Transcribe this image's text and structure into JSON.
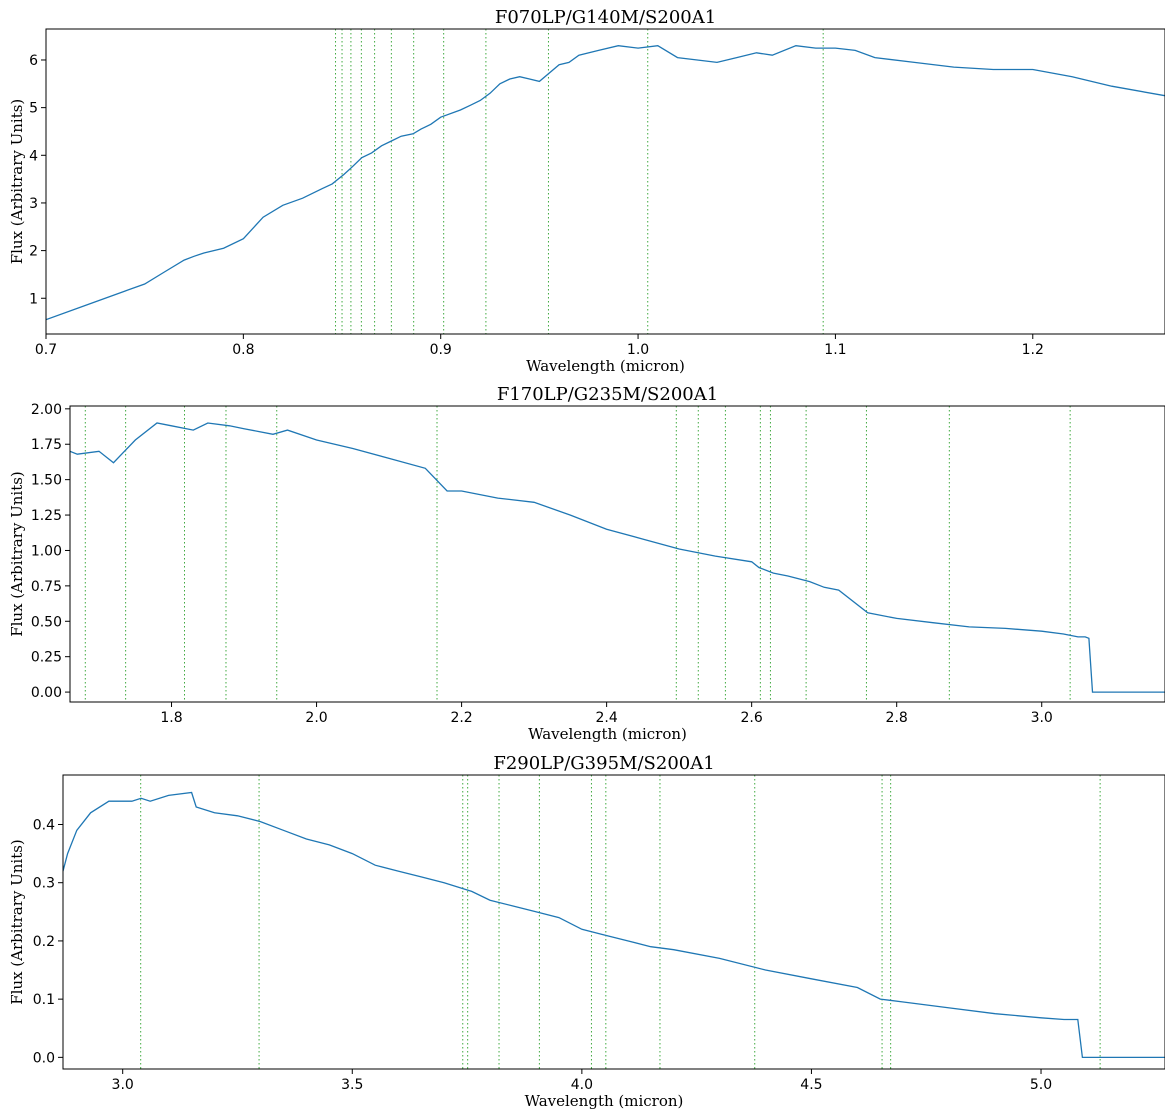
{
  "chart_data": [
    {
      "type": "line",
      "title": "F070LP/G140M/S200A1",
      "xlabel": "Wavelength (micron)",
      "ylabel": "Flux (Arbitrary Units)",
      "xlim": [
        0.7,
        1.267
      ],
      "ylim": [
        0.25,
        6.65
      ],
      "xticks": [
        "0.7",
        "0.8",
        "0.9",
        "1.0",
        "1.1",
        "1.2"
      ],
      "yticks": [
        "1",
        "2",
        "3",
        "4",
        "5",
        "6"
      ],
      "grid": false,
      "line_color": "#1f77b4",
      "marker_color": "#2ca02c",
      "marker_lines": [
        0.8467,
        0.85,
        0.8545,
        0.8598,
        0.8665,
        0.875,
        0.8863,
        0.9015,
        0.9229,
        0.9546,
        1.0049,
        1.0938
      ],
      "series": [
        {
          "x": [
            0.7,
            0.72,
            0.74,
            0.75,
            0.76,
            0.77,
            0.775,
            0.78,
            0.79,
            0.8,
            0.81,
            0.82,
            0.83,
            0.84,
            0.845,
            0.848,
            0.851,
            0.855,
            0.86,
            0.865,
            0.87,
            0.875,
            0.88,
            0.886,
            0.89,
            0.895,
            0.9,
            0.91,
            0.915,
            0.92,
            0.925,
            0.93,
            0.935,
            0.94,
            0.945,
            0.95,
            0.96,
            0.965,
            0.97,
            0.98,
            0.99,
            1.0,
            1.01,
            1.02,
            1.03,
            1.04,
            1.05,
            1.06,
            1.068,
            1.08,
            1.09,
            1.1,
            1.11,
            1.12,
            1.14,
            1.16,
            1.18,
            1.2,
            1.22,
            1.24,
            1.267
          ],
          "y": [
            0.55,
            0.85,
            1.15,
            1.3,
            1.55,
            1.8,
            1.88,
            1.95,
            2.05,
            2.25,
            2.7,
            2.95,
            3.1,
            3.3,
            3.4,
            3.5,
            3.6,
            3.75,
            3.95,
            4.05,
            4.2,
            4.3,
            4.4,
            4.45,
            4.55,
            4.65,
            4.8,
            4.95,
            5.05,
            5.15,
            5.3,
            5.5,
            5.6,
            5.65,
            5.6,
            5.55,
            5.9,
            5.95,
            6.1,
            6.2,
            6.3,
            6.25,
            6.3,
            6.05,
            6.0,
            5.95,
            6.05,
            6.15,
            6.1,
            6.3,
            6.25,
            6.25,
            6.2,
            6.05,
            5.95,
            5.85,
            5.8,
            5.8,
            5.65,
            5.45,
            5.25
          ]
        }
      ]
    },
    {
      "type": "line",
      "title": "F170LP/G235M/S200A1",
      "xlabel": "Wavelength (micron)",
      "ylabel": "Flux (Arbitrary Units)",
      "xlim": [
        1.66,
        3.17
      ],
      "ylim": [
        -0.07,
        2.02
      ],
      "xticks": [
        "1.8",
        "2.0",
        "2.2",
        "2.4",
        "2.6",
        "2.8",
        "3.0"
      ],
      "yticks": [
        "0.00",
        "0.25",
        "0.50",
        "0.75",
        "1.00",
        "1.25",
        "1.50",
        "1.75",
        "2.00"
      ],
      "grid": false,
      "line_color": "#1f77b4",
      "marker_color": "#2ca02c",
      "marker_lines": [
        1.6811,
        1.7367,
        1.8179,
        1.8751,
        1.9451,
        2.1661,
        2.4961,
        2.5264,
        2.5638,
        2.612,
        2.6259,
        2.6751,
        2.7583,
        2.8726,
        3.0392
      ],
      "series": [
        {
          "x": [
            1.66,
            1.67,
            1.7,
            1.72,
            1.75,
            1.78,
            1.8,
            1.83,
            1.85,
            1.88,
            1.9,
            1.92,
            1.94,
            1.96,
            2.0,
            2.05,
            2.1,
            2.15,
            2.18,
            2.2,
            2.25,
            2.3,
            2.35,
            2.4,
            2.45,
            2.5,
            2.55,
            2.6,
            2.61,
            2.63,
            2.65,
            2.68,
            2.7,
            2.72,
            2.76,
            2.8,
            2.85,
            2.9,
            2.95,
            3.0,
            3.03,
            3.05,
            3.06,
            3.065,
            3.07,
            3.17
          ],
          "y": [
            1.7,
            1.68,
            1.7,
            1.62,
            1.78,
            1.9,
            1.88,
            1.85,
            1.9,
            1.88,
            1.86,
            1.84,
            1.82,
            1.85,
            1.78,
            1.72,
            1.65,
            1.58,
            1.42,
            1.42,
            1.37,
            1.34,
            1.25,
            1.15,
            1.08,
            1.01,
            0.96,
            0.92,
            0.88,
            0.84,
            0.82,
            0.78,
            0.74,
            0.72,
            0.56,
            0.52,
            0.49,
            0.46,
            0.45,
            0.43,
            0.41,
            0.39,
            0.39,
            0.38,
            0.0,
            0.0
          ]
        }
      ]
    },
    {
      "type": "line",
      "title": "F290LP/G395M/S200A1",
      "xlabel": "Wavelength (micron)",
      "ylabel": "Flux (Arbitrary Units)",
      "xlim": [
        2.87,
        5.27
      ],
      "ylim": [
        -0.02,
        0.485
      ],
      "xticks": [
        "3.0",
        "3.5",
        "4.0",
        "4.5",
        "5.0"
      ],
      "yticks": [
        "0.0",
        "0.1",
        "0.2",
        "0.3",
        "0.4"
      ],
      "grid": false,
      "line_color": "#1f77b4",
      "marker_color": "#2ca02c",
      "marker_lines": [
        3.0392,
        3.297,
        3.7406,
        3.7513,
        3.8196,
        3.9075,
        4.0209,
        4.0522,
        4.1701,
        4.3765,
        4.6538,
        4.6725,
        5.1287
      ],
      "series": [
        {
          "x": [
            2.87,
            2.88,
            2.9,
            2.93,
            2.97,
            3.0,
            3.02,
            3.04,
            3.06,
            3.1,
            3.15,
            3.16,
            3.2,
            3.25,
            3.3,
            3.35,
            3.4,
            3.45,
            3.5,
            3.55,
            3.6,
            3.65,
            3.7,
            3.74,
            3.76,
            3.8,
            3.85,
            3.9,
            3.95,
            4.0,
            4.05,
            4.1,
            4.15,
            4.2,
            4.3,
            4.4,
            4.5,
            4.6,
            4.65,
            4.7,
            4.8,
            4.9,
            5.0,
            5.05,
            5.08,
            5.09,
            5.1,
            5.27
          ],
          "y": [
            0.32,
            0.35,
            0.39,
            0.42,
            0.44,
            0.44,
            0.44,
            0.445,
            0.44,
            0.45,
            0.455,
            0.43,
            0.42,
            0.415,
            0.405,
            0.39,
            0.375,
            0.365,
            0.35,
            0.33,
            0.32,
            0.31,
            0.3,
            0.29,
            0.285,
            0.27,
            0.26,
            0.25,
            0.24,
            0.22,
            0.21,
            0.2,
            0.19,
            0.185,
            0.17,
            0.15,
            0.135,
            0.12,
            0.1,
            0.095,
            0.085,
            0.075,
            0.068,
            0.065,
            0.065,
            0.0,
            0.0,
            0.0
          ]
        }
      ]
    }
  ]
}
